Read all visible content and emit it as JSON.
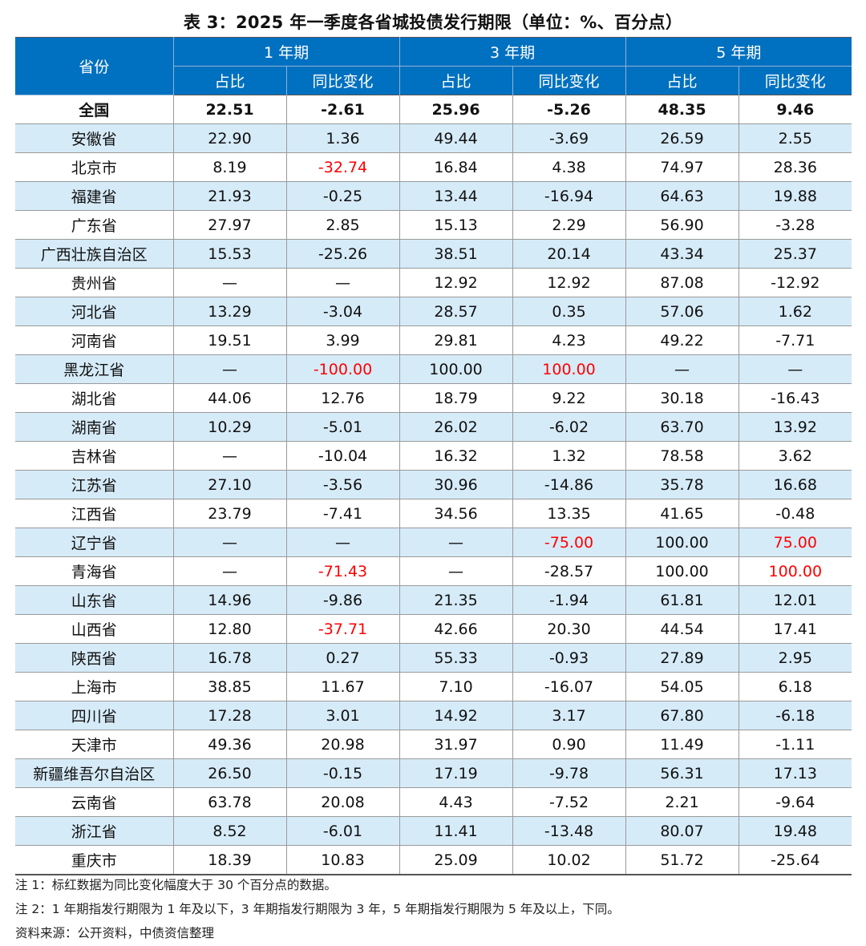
{
  "title": "表 3：2025 年一季度各省城投债发行期限（单位：%、百分点）",
  "header": {
    "province": "省份",
    "groups": [
      "1 年期",
      "3 年期",
      "5 年期"
    ],
    "sub": [
      "占比",
      "同比变化",
      "占比",
      "同比变化",
      "占比",
      "同比变化"
    ]
  },
  "highlight_color": "#FF0000",
  "header_color": "#0070C0",
  "stripe_color": "#D6EBF8",
  "rows": [
    {
      "name": "全国",
      "v": [
        "22.51",
        "-2.61",
        "25.96",
        "-5.26",
        "48.35",
        "9.46"
      ],
      "red": []
    },
    {
      "name": "安徽省",
      "v": [
        "22.90",
        "1.36",
        "49.44",
        "-3.69",
        "26.59",
        "2.55"
      ],
      "red": []
    },
    {
      "name": "北京市",
      "v": [
        "8.19",
        "-32.74",
        "16.84",
        "4.38",
        "74.97",
        "28.36"
      ],
      "red": [
        1
      ]
    },
    {
      "name": "福建省",
      "v": [
        "21.93",
        "-0.25",
        "13.44",
        "-16.94",
        "64.63",
        "19.88"
      ],
      "red": []
    },
    {
      "name": "广东省",
      "v": [
        "27.97",
        "2.85",
        "15.13",
        "2.29",
        "56.90",
        "-3.28"
      ],
      "red": []
    },
    {
      "name": "广西壮族自治区",
      "v": [
        "15.53",
        "-25.26",
        "38.51",
        "20.14",
        "43.34",
        "25.37"
      ],
      "red": []
    },
    {
      "name": "贵州省",
      "v": [
        "—",
        "—",
        "12.92",
        "12.92",
        "87.08",
        "-12.92"
      ],
      "red": []
    },
    {
      "name": "河北省",
      "v": [
        "13.29",
        "-3.04",
        "28.57",
        "0.35",
        "57.06",
        "1.62"
      ],
      "red": []
    },
    {
      "name": "河南省",
      "v": [
        "19.51",
        "3.99",
        "29.81",
        "4.23",
        "49.22",
        "-7.71"
      ],
      "red": []
    },
    {
      "name": "黑龙江省",
      "v": [
        "—",
        "-100.00",
        "100.00",
        "100.00",
        "—",
        "—"
      ],
      "red": [
        1,
        3
      ]
    },
    {
      "name": "湖北省",
      "v": [
        "44.06",
        "12.76",
        "18.79",
        "9.22",
        "30.18",
        "-16.43"
      ],
      "red": []
    },
    {
      "name": "湖南省",
      "v": [
        "10.29",
        "-5.01",
        "26.02",
        "-6.02",
        "63.70",
        "13.92"
      ],
      "red": []
    },
    {
      "name": "吉林省",
      "v": [
        "—",
        "-10.04",
        "16.32",
        "1.32",
        "78.58",
        "3.62"
      ],
      "red": []
    },
    {
      "name": "江苏省",
      "v": [
        "27.10",
        "-3.56",
        "30.96",
        "-14.86",
        "35.78",
        "16.68"
      ],
      "red": []
    },
    {
      "name": "江西省",
      "v": [
        "23.79",
        "-7.41",
        "34.56",
        "13.35",
        "41.65",
        "-0.48"
      ],
      "red": []
    },
    {
      "name": "辽宁省",
      "v": [
        "—",
        "—",
        "—",
        "-75.00",
        "100.00",
        "75.00"
      ],
      "red": [
        3,
        5
      ]
    },
    {
      "name": "青海省",
      "v": [
        "—",
        "-71.43",
        "—",
        "-28.57",
        "100.00",
        "100.00"
      ],
      "red": [
        1,
        5
      ]
    },
    {
      "name": "山东省",
      "v": [
        "14.96",
        "-9.86",
        "21.35",
        "-1.94",
        "61.81",
        "12.01"
      ],
      "red": []
    },
    {
      "name": "山西省",
      "v": [
        "12.80",
        "-37.71",
        "42.66",
        "20.30",
        "44.54",
        "17.41"
      ],
      "red": [
        1
      ]
    },
    {
      "name": "陕西省",
      "v": [
        "16.78",
        "0.27",
        "55.33",
        "-0.93",
        "27.89",
        "2.95"
      ],
      "red": []
    },
    {
      "name": "上海市",
      "v": [
        "38.85",
        "11.67",
        "7.10",
        "-16.07",
        "54.05",
        "6.18"
      ],
      "red": []
    },
    {
      "name": "四川省",
      "v": [
        "17.28",
        "3.01",
        "14.92",
        "3.17",
        "67.80",
        "-6.18"
      ],
      "red": []
    },
    {
      "name": "天津市",
      "v": [
        "49.36",
        "20.98",
        "31.97",
        "0.90",
        "11.49",
        "-1.11"
      ],
      "red": []
    },
    {
      "name": "新疆维吾尔自治区",
      "v": [
        "26.50",
        "-0.15",
        "17.19",
        "-9.78",
        "56.31",
        "17.13"
      ],
      "red": []
    },
    {
      "name": "云南省",
      "v": [
        "63.78",
        "20.08",
        "4.43",
        "-7.52",
        "2.21",
        "-9.64"
      ],
      "red": []
    },
    {
      "name": "浙江省",
      "v": [
        "8.52",
        "-6.01",
        "11.41",
        "-13.48",
        "80.07",
        "19.48"
      ],
      "red": []
    },
    {
      "name": "重庆市",
      "v": [
        "18.39",
        "10.83",
        "25.09",
        "10.02",
        "51.72",
        "-25.64"
      ],
      "red": []
    }
  ],
  "notes": [
    "注 1：标红数据为同比变化幅度大于 30 个百分点的数据。",
    "注 2：1 年期指发行期限为 1 年及以下，3 年期指发行期限为 3 年，5 年期指发行期限为 5 年及以上，下同。",
    "资料来源：公开资料，中债资信整理"
  ]
}
